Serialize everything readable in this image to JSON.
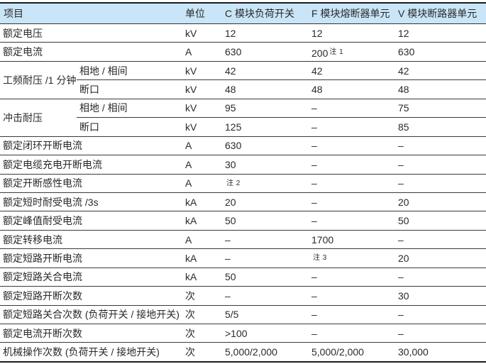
{
  "table": {
    "headers": [
      "项目",
      "单位",
      "C 模块负荷开关",
      "F 模块熔断器单元",
      "V 模块断路器单元"
    ],
    "colors": {
      "header_bg": "#c9e5f8",
      "border_heavy": "#1c1c1c",
      "border_row": "#3a3a3a",
      "text": "#2a2a2a"
    },
    "rows": [
      {
        "item": "额定电压",
        "unit": "kV",
        "c": {
          "text": "12"
        },
        "f": {
          "text": "12"
        },
        "v": {
          "text": "12"
        }
      },
      {
        "item": "额定电流",
        "unit": "A",
        "c": {
          "text": "630"
        },
        "f": {
          "text": "200",
          "note": "注 1"
        },
        "v": {
          "text": "630"
        }
      },
      {
        "item": "工频耐压 /1 分钟",
        "rowspan": 2,
        "sub": "相地 / 相间",
        "unit": "kV",
        "c": {
          "text": "42"
        },
        "f": {
          "text": "42"
        },
        "v": {
          "text": "42"
        }
      },
      {
        "item": null,
        "sub": "断口",
        "unit": "kV",
        "c": {
          "text": "48"
        },
        "f": {
          "text": "48"
        },
        "v": {
          "text": "48"
        }
      },
      {
        "item": "冲击耐压",
        "rowspan": 2,
        "sub": "相地 / 相间",
        "unit": "kV",
        "c": {
          "text": "95"
        },
        "f": {
          "text": "–"
        },
        "v": {
          "text": "75"
        }
      },
      {
        "item": null,
        "sub": "断口",
        "unit": "kV",
        "c": {
          "text": "125"
        },
        "f": {
          "text": "–"
        },
        "v": {
          "text": "85"
        }
      },
      {
        "item": "额定闭环开断电流",
        "unit": "A",
        "c": {
          "text": "630"
        },
        "f": {
          "text": "–"
        },
        "v": {
          "text": "–"
        }
      },
      {
        "item": "额定电缆充电开断电流",
        "unit": "A",
        "c": {
          "text": "30"
        },
        "f": {
          "text": "–"
        },
        "v": {
          "text": "–"
        }
      },
      {
        "item": "额定开断感性电流",
        "unit": "A",
        "c": {
          "note": "注 2"
        },
        "f": {
          "text": "–"
        },
        "v": {
          "text": "–"
        }
      },
      {
        "item": "额定短时耐受电流 /3s",
        "unit": "kA",
        "c": {
          "text": "20"
        },
        "f": {
          "text": "–"
        },
        "v": {
          "text": "20"
        }
      },
      {
        "item": "额定峰值耐受电流",
        "unit": "kA",
        "c": {
          "text": "50"
        },
        "f": {
          "text": "–"
        },
        "v": {
          "text": "50"
        }
      },
      {
        "item": "额定转移电流",
        "unit": "A",
        "c": {
          "text": "–"
        },
        "f": {
          "text": "1700"
        },
        "v": {
          "text": "–"
        }
      },
      {
        "item": "额定短路开断电流",
        "unit": "kA",
        "c": {
          "text": "–"
        },
        "f": {
          "note": "注 3"
        },
        "v": {
          "text": "20"
        }
      },
      {
        "item": "额定短路关合电流",
        "unit": "kA",
        "c": {
          "text": "50"
        },
        "f": {
          "text": "–"
        },
        "v": {
          "text": "–"
        }
      },
      {
        "item": "额定短路开断次数",
        "unit": "次",
        "c": {
          "text": "–"
        },
        "f": {
          "text": "–"
        },
        "v": {
          "text": "30"
        }
      },
      {
        "item": "额定短路关合次数 (负荷开关 / 接地开关)",
        "unit": "次",
        "c": {
          "text": "5/5"
        },
        "f": {
          "text": "–"
        },
        "v": {
          "text": "–"
        }
      },
      {
        "item": "额定电流开断次数",
        "unit": "次",
        "c": {
          "text": ">100"
        },
        "f": {
          "text": "–"
        },
        "v": {
          "text": "–"
        }
      },
      {
        "item": "机械操作次数 (负荷开关 / 接地开关)",
        "unit": "次",
        "c": {
          "text": "5,000/2,000"
        },
        "f": {
          "text": "5,000/2,000"
        },
        "v": {
          "text": "30,000"
        }
      }
    ]
  }
}
